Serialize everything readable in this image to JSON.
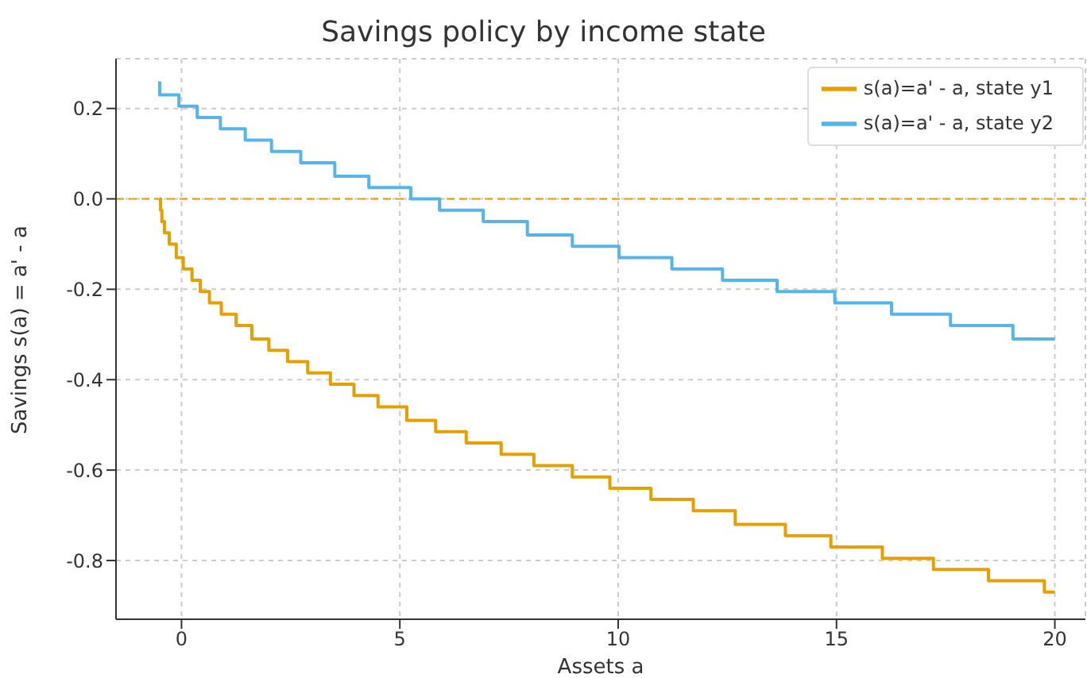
{
  "chart_data": {
    "type": "step",
    "title": "Savings policy by income state",
    "xlabel": "Assets a",
    "ylabel": "Savings s(a) = a' - a",
    "xlim": [
      -1.5,
      20.7
    ],
    "xticks": [
      0,
      5,
      10,
      15,
      20
    ],
    "ylim": [
      -0.93,
      0.31
    ],
    "yticks": [
      -0.8,
      -0.6,
      -0.4,
      -0.2,
      {
        "value": 0,
        "label": "0.0"
      },
      0.2
    ],
    "grid": true,
    "legend": "top right",
    "marker": "none",
    "line_style": "solid",
    "ref_lines": [
      {
        "axis": "y",
        "value": 0,
        "color": "#e69f00",
        "line_style": "dashed"
      }
    ],
    "series": [
      {
        "name": "s(a)=a' - a, state y1",
        "color": "#e69f00",
        "x": [
          -0.5,
          -0.48,
          -0.45,
          -0.39,
          -0.28,
          -0.12,
          0.04,
          0.24,
          0.43,
          0.64,
          0.91,
          1.25,
          1.61,
          2.0,
          2.43,
          2.89,
          3.41,
          3.95,
          4.5,
          5.16,
          5.82,
          6.52,
          7.32,
          8.07,
          8.95,
          9.81,
          10.75,
          11.72,
          12.68,
          13.83,
          14.87,
          16.05,
          17.22,
          18.48,
          19.76,
          20
        ],
        "values": [
          0,
          -0.025,
          -0.05,
          -0.075,
          -0.1,
          -0.13,
          -0.155,
          -0.18,
          -0.205,
          -0.23,
          -0.255,
          -0.28,
          -0.31,
          -0.335,
          -0.36,
          -0.385,
          -0.41,
          -0.435,
          -0.46,
          -0.49,
          -0.515,
          -0.54,
          -0.565,
          -0.59,
          -0.615,
          -0.64,
          -0.665,
          -0.69,
          -0.72,
          -0.745,
          -0.77,
          -0.795,
          -0.82,
          -0.845,
          -0.87,
          -0.87
        ]
      },
      {
        "name": "s(a)=a' - a, state y2",
        "color": "#56b4e9",
        "x": [
          -0.5,
          -0.5,
          -0.06,
          0.36,
          0.89,
          1.46,
          2.06,
          2.73,
          3.51,
          4.29,
          5.25,
          5.91,
          6.91,
          7.92,
          8.95,
          10.02,
          11.23,
          12.39,
          13.64,
          14.96,
          16.26,
          17.61,
          19.04,
          20
        ],
        "values": [
          0.26,
          0.23,
          0.205,
          0.18,
          0.155,
          0.13,
          0.105,
          0.08,
          0.05,
          0.025,
          0,
          -0.025,
          -0.05,
          -0.08,
          -0.105,
          -0.13,
          -0.155,
          -0.18,
          -0.205,
          -0.23,
          -0.255,
          -0.28,
          -0.31,
          -0.31
        ]
      }
    ]
  }
}
